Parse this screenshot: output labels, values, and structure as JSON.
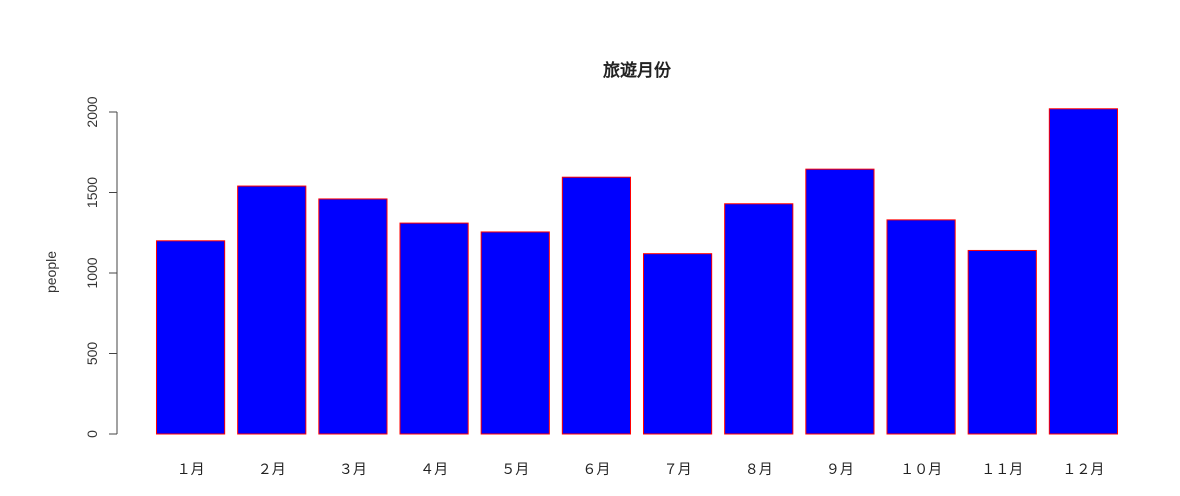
{
  "chart_data": {
    "type": "bar",
    "title": "旅遊月份",
    "xlabel": "",
    "ylabel": "people",
    "categories": [
      "１月",
      "２月",
      "３月",
      "４月",
      "５月",
      "６月",
      "７月",
      "８月",
      "９月",
      "１０月",
      "１１月",
      "１２月"
    ],
    "values": [
      1200,
      1540,
      1460,
      1310,
      1255,
      1595,
      1120,
      1430,
      1645,
      1330,
      1140,
      2020
    ],
    "ylim": [
      0,
      2000
    ],
    "yticks": [
      0,
      500,
      1000,
      1500,
      2000
    ],
    "ytick_labels": [
      "0",
      "500",
      "1000",
      "1500",
      "2000"
    ],
    "bar_fill": "#0000ff",
    "bar_border": "#ff0000",
    "grid": false,
    "legend": false
  }
}
